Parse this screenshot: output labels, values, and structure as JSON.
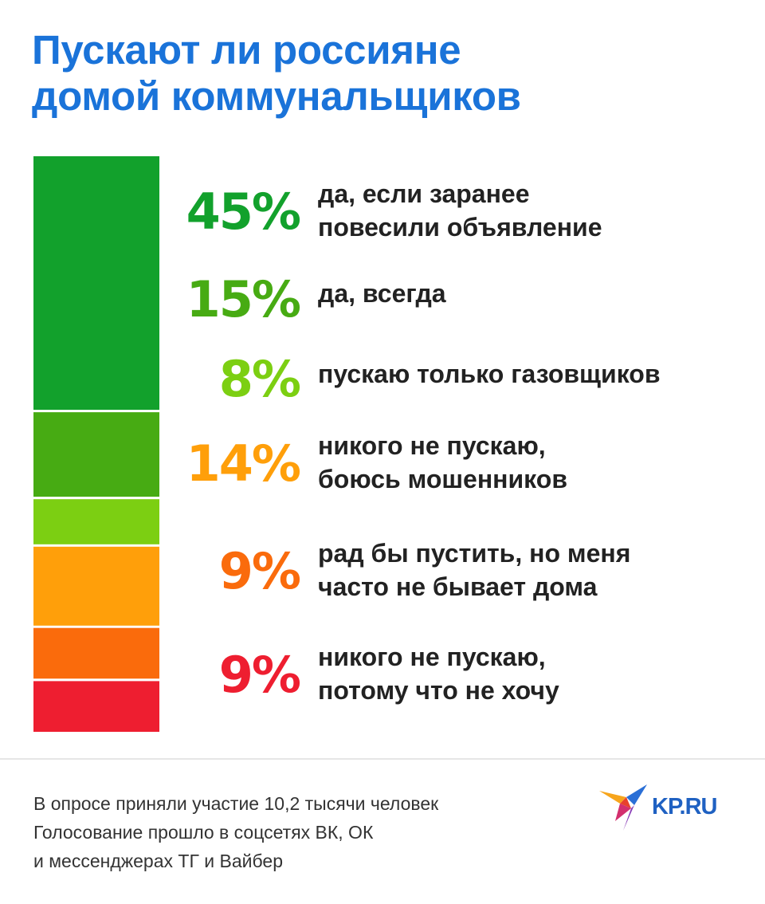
{
  "title": {
    "line1": "Пускают ли россияне",
    "line2": "домой коммунальщиков"
  },
  "chart_data": {
    "type": "bar",
    "orientation": "stacked-vertical",
    "unit": "%",
    "categories": [
      "да, если заранее повесили объявление",
      "да, всегда",
      "пускаю только газовщиков",
      "никого не пускаю, боюсь мошенников",
      "рад бы пустить, но меня часто не бывает дома",
      "никого не пускаю, потому что не хочу"
    ],
    "values": [
      45,
      15,
      8,
      14,
      9,
      9
    ],
    "colors": [
      "#12a12c",
      "#47ab13",
      "#7ccf12",
      "#ff9f0a",
      "#fa6b0c",
      "#ee1e30"
    ]
  },
  "items": [
    {
      "pct": "45%",
      "color": "#12a12c",
      "lines": [
        "да, если заранее",
        "повесили объявление"
      ]
    },
    {
      "pct": "15%",
      "color": "#47ab13",
      "lines": [
        "да, всегда"
      ]
    },
    {
      "pct": "8%",
      "color": "#7ccf12",
      "lines": [
        "пускаю только газовщиков"
      ]
    },
    {
      "pct": "14%",
      "color": "#ff9f0a",
      "lines": [
        "никого не пускаю,",
        "боюсь мошенников"
      ]
    },
    {
      "pct": "9%",
      "color": "#fa6b0c",
      "lines": [
        "рад бы пустить, но меня",
        "часто не бывает дома"
      ]
    },
    {
      "pct": "9%",
      "color": "#ee1e30",
      "lines": [
        "никого не пускаю,",
        "потому что не хочу"
      ]
    }
  ],
  "footer": {
    "line1": "В опросе приняли участие 10,2 тысячи человек",
    "line2": "Голосование прошло в соцсетях ВК, ОК",
    "line3": "и мессенджерах ТГ и Вайбер"
  },
  "logo": {
    "text": "KP.RU",
    "icon": "bird-icon"
  }
}
